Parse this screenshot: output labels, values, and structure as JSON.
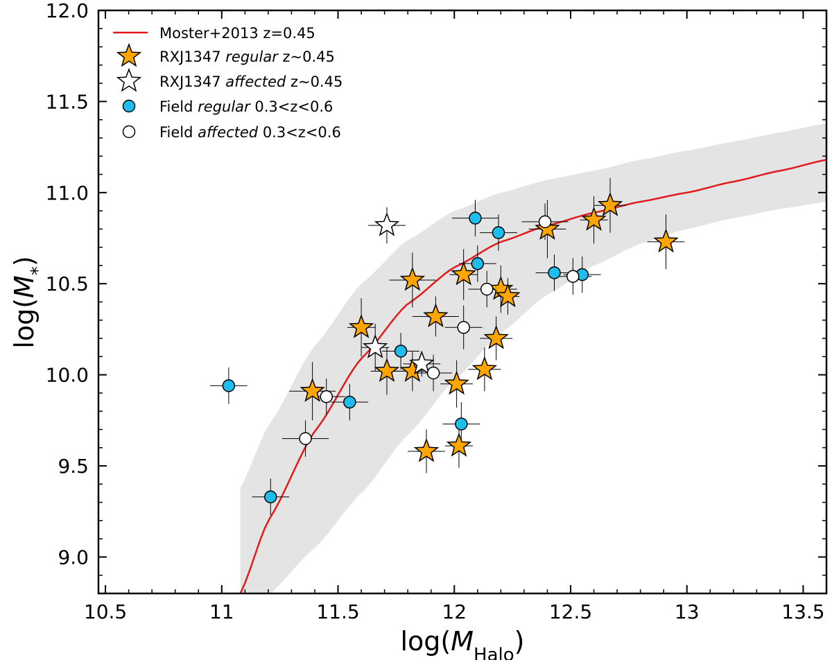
{
  "chart_data": {
    "type": "scatter",
    "title": "",
    "xlim": [
      10.47,
      13.6
    ],
    "ylim": [
      8.8,
      12.0
    ],
    "xticks": [
      {
        "value": 10.5,
        "label": "10.5"
      },
      {
        "value": 11,
        "label": "11"
      },
      {
        "value": 11.5,
        "label": "11.5"
      },
      {
        "value": 12,
        "label": "12"
      },
      {
        "value": 12.5,
        "label": "12.5"
      },
      {
        "value": 13,
        "label": "13"
      },
      {
        "value": 13.5,
        "label": "13.5"
      }
    ],
    "yticks": [
      {
        "value": 9.0,
        "label": "9.0"
      },
      {
        "value": 9.5,
        "label": "9.5"
      },
      {
        "value": 10.0,
        "label": "10.0"
      },
      {
        "value": 10.5,
        "label": "10.5"
      },
      {
        "value": 11.0,
        "label": "11.0"
      },
      {
        "value": 11.5,
        "label": "11.5"
      },
      {
        "value": 12.0,
        "label": "12.0"
      }
    ],
    "xlabel": {
      "prefix": "log(",
      "var": "M",
      "sub": "Halo",
      "suffix": ")"
    },
    "ylabel": {
      "prefix": "log(",
      "var": "M",
      "sub": "*",
      "suffix": ")"
    },
    "legend_position": "top-left",
    "colors": {
      "model_line": "#e31a1c",
      "band": "#e4e4e4",
      "star_regular": "#ffa500",
      "field_regular": "#1ebdee",
      "affected": "#ffffff",
      "edge": "#000000"
    },
    "legend": [
      {
        "marker": "line",
        "parts": [
          {
            "t": "Moster+2013 z=0.45",
            "i": false
          }
        ]
      },
      {
        "marker": "star-regular",
        "parts": [
          {
            "t": "RXJ1347 ",
            "i": false
          },
          {
            "t": "regular",
            "i": true
          },
          {
            "t": " z~0.45",
            "i": false
          }
        ]
      },
      {
        "marker": "star-affected",
        "parts": [
          {
            "t": "RXJ1347 ",
            "i": false
          },
          {
            "t": "affected",
            "i": true
          },
          {
            "t": " z~0.45",
            "i": false
          }
        ]
      },
      {
        "marker": "circle-regular",
        "parts": [
          {
            "t": "Field ",
            "i": false
          },
          {
            "t": "regular",
            "i": true
          },
          {
            "t": " 0.3<z<0.6",
            "i": false
          }
        ]
      },
      {
        "marker": "circle-affected",
        "parts": [
          {
            "t": "Field ",
            "i": false
          },
          {
            "t": "affected",
            "i": true
          },
          {
            "t": " 0.3<z<0.6",
            "i": false
          }
        ]
      }
    ],
    "model_curve": {
      "name": "Moster+2013 z=0.45",
      "x": [
        11.08,
        11.2,
        11.4,
        11.6,
        11.8,
        12.0,
        12.2,
        12.4,
        12.6,
        12.8,
        13.0,
        13.2,
        13.4,
        13.6
      ],
      "y": [
        8.8,
        9.2,
        9.69,
        10.09,
        10.39,
        10.59,
        10.73,
        10.82,
        10.89,
        10.95,
        11.0,
        11.06,
        11.12,
        11.18
      ],
      "band_upper": [
        9.38,
        9.72,
        10.16,
        10.5,
        10.74,
        10.9,
        11.0,
        11.07,
        11.12,
        11.18,
        11.23,
        11.28,
        11.33,
        11.38
      ],
      "band_lower": [
        8.63,
        8.79,
        9.05,
        9.35,
        9.67,
        9.97,
        10.23,
        10.44,
        10.6,
        10.72,
        10.8,
        10.86,
        10.91,
        10.95
      ]
    },
    "series": [
      {
        "name": "RXJ1347 regular z~0.45",
        "marker": "star",
        "fill": "#ffa500",
        "points": [
          {
            "x": 11.39,
            "y": 9.91,
            "xerr": 0.1,
            "yerr": 0.16
          },
          {
            "x": 11.6,
            "y": 10.26,
            "xerr": 0.06,
            "yerr": 0.16
          },
          {
            "x": 11.71,
            "y": 10.02,
            "xerr": 0.07,
            "yerr": 0.13
          },
          {
            "x": 11.82,
            "y": 10.52,
            "xerr": 0.1,
            "yerr": 0.15
          },
          {
            "x": 11.82,
            "y": 10.02,
            "xerr": 0.09,
            "yerr": 0.11
          },
          {
            "x": 11.88,
            "y": 9.58,
            "xerr": 0.08,
            "yerr": 0.12
          },
          {
            "x": 11.92,
            "y": 10.32,
            "xerr": 0.1,
            "yerr": 0.11
          },
          {
            "x": 12.01,
            "y": 9.95,
            "xerr": 0.07,
            "yerr": 0.13
          },
          {
            "x": 12.02,
            "y": 9.61,
            "xerr": 0.06,
            "yerr": 0.12
          },
          {
            "x": 12.04,
            "y": 10.55,
            "xerr": 0.06,
            "yerr": 0.14
          },
          {
            "x": 12.13,
            "y": 10.03,
            "xerr": 0.07,
            "yerr": 0.12
          },
          {
            "x": 12.18,
            "y": 10.2,
            "xerr": 0.07,
            "yerr": 0.12
          },
          {
            "x": 12.2,
            "y": 10.47,
            "xerr": 0.07,
            "yerr": 0.13
          },
          {
            "x": 12.23,
            "y": 10.43,
            "xerr": 0.05,
            "yerr": 0.1
          },
          {
            "x": 12.4,
            "y": 10.8,
            "xerr": 0.08,
            "yerr": 0.16
          },
          {
            "x": 12.6,
            "y": 10.85,
            "xerr": 0.06,
            "yerr": 0.13
          },
          {
            "x": 12.67,
            "y": 10.93,
            "xerr": 0.07,
            "yerr": 0.15
          },
          {
            "x": 12.91,
            "y": 10.73,
            "xerr": 0.08,
            "yerr": 0.15
          }
        ]
      },
      {
        "name": "RXJ1347 affected z~0.45",
        "marker": "star",
        "fill": "#ffffff",
        "points": [
          {
            "x": 11.71,
            "y": 10.82,
            "xerr": 0.08,
            "yerr": 0.1
          },
          {
            "x": 11.66,
            "y": 10.15,
            "xerr": 0.06,
            "yerr": 0.13
          },
          {
            "x": 11.86,
            "y": 10.06,
            "xerr": 0.08,
            "yerr": 0.07
          }
        ]
      },
      {
        "name": "Field regular 0.3<z<0.6",
        "marker": "circle",
        "fill": "#1ebdee",
        "points": [
          {
            "x": 11.03,
            "y": 9.94,
            "xerr": 0.08,
            "yerr": 0.1
          },
          {
            "x": 11.21,
            "y": 9.33,
            "xerr": 0.08,
            "yerr": 0.1
          },
          {
            "x": 11.55,
            "y": 9.85,
            "xerr": 0.08,
            "yerr": 0.1
          },
          {
            "x": 11.77,
            "y": 10.13,
            "xerr": 0.08,
            "yerr": 0.1
          },
          {
            "x": 12.03,
            "y": 9.73,
            "xerr": 0.08,
            "yerr": 0.12
          },
          {
            "x": 12.09,
            "y": 10.86,
            "xerr": 0.1,
            "yerr": 0.1
          },
          {
            "x": 12.1,
            "y": 10.61,
            "xerr": 0.08,
            "yerr": 0.1
          },
          {
            "x": 12.19,
            "y": 10.78,
            "xerr": 0.08,
            "yerr": 0.1
          },
          {
            "x": 12.43,
            "y": 10.56,
            "xerr": 0.08,
            "yerr": 0.1
          },
          {
            "x": 12.55,
            "y": 10.55,
            "xerr": 0.08,
            "yerr": 0.1
          }
        ]
      },
      {
        "name": "Field affected 0.3<z<0.6",
        "marker": "circle",
        "fill": "#ffffff",
        "points": [
          {
            "x": 11.36,
            "y": 9.65,
            "xerr": 0.1,
            "yerr": 0.1
          },
          {
            "x": 11.45,
            "y": 9.88,
            "xerr": 0.08,
            "yerr": 0.1
          },
          {
            "x": 11.91,
            "y": 10.01,
            "xerr": 0.08,
            "yerr": 0.1
          },
          {
            "x": 12.04,
            "y": 10.26,
            "xerr": 0.08,
            "yerr": 0.12
          },
          {
            "x": 12.14,
            "y": 10.47,
            "xerr": 0.08,
            "yerr": 0.1
          },
          {
            "x": 12.39,
            "y": 10.84,
            "xerr": 0.1,
            "yerr": 0.1
          },
          {
            "x": 12.51,
            "y": 10.54,
            "xerr": 0.08,
            "yerr": 0.1
          }
        ]
      }
    ]
  }
}
